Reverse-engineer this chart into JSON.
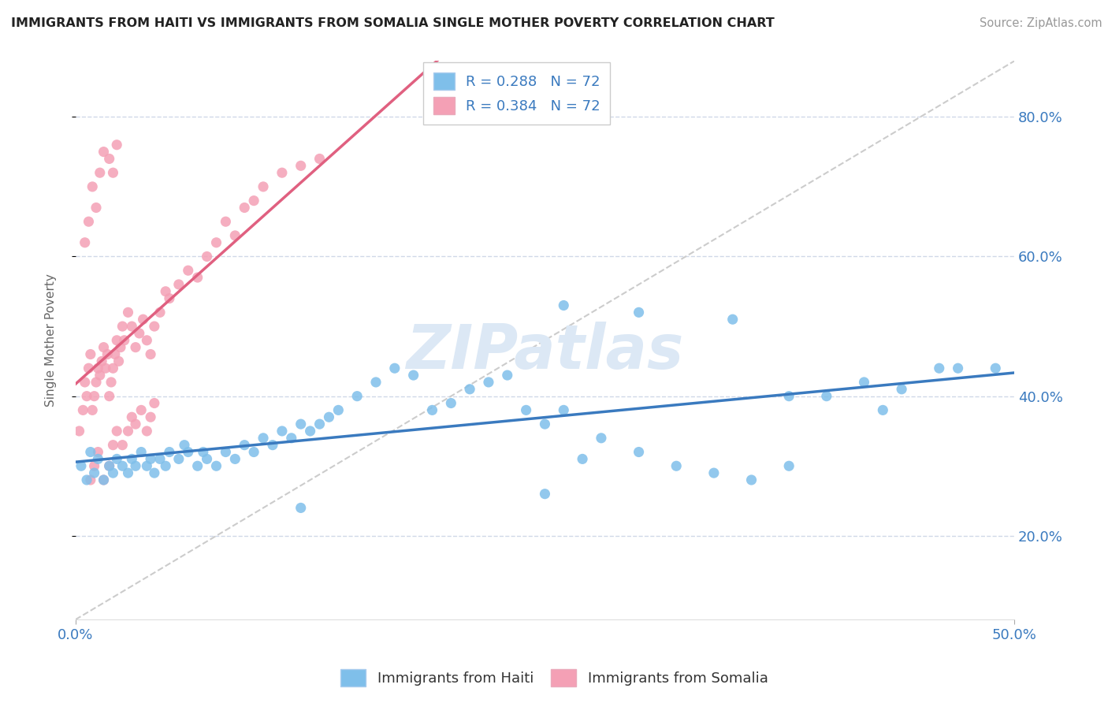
{
  "title": "IMMIGRANTS FROM HAITI VS IMMIGRANTS FROM SOMALIA SINGLE MOTHER POVERTY CORRELATION CHART",
  "source": "Source: ZipAtlas.com",
  "ylabel": "Single Mother Poverty",
  "xlim": [
    0.0,
    0.5
  ],
  "ylim": [
    0.08,
    0.88
  ],
  "haiti_R": "0.288",
  "haiti_N": "72",
  "somalia_R": "0.384",
  "somalia_N": "72",
  "haiti_color": "#7fbfea",
  "somalia_color": "#f4a0b5",
  "haiti_line_color": "#3a7abf",
  "somalia_line_color": "#e06080",
  "diag_line_color": "#cccccc",
  "watermark_color": "#dce8f5",
  "grid_color": "#d0d8e8",
  "haiti_x": [
    0.003,
    0.006,
    0.008,
    0.01,
    0.012,
    0.015,
    0.018,
    0.02,
    0.022,
    0.025,
    0.028,
    0.03,
    0.032,
    0.035,
    0.038,
    0.04,
    0.042,
    0.045,
    0.048,
    0.05,
    0.055,
    0.058,
    0.06,
    0.065,
    0.068,
    0.07,
    0.075,
    0.08,
    0.085,
    0.09,
    0.095,
    0.1,
    0.105,
    0.11,
    0.115,
    0.12,
    0.125,
    0.13,
    0.135,
    0.14,
    0.15,
    0.16,
    0.17,
    0.18,
    0.19,
    0.2,
    0.21,
    0.22,
    0.23,
    0.24,
    0.25,
    0.26,
    0.27,
    0.28,
    0.3,
    0.32,
    0.34,
    0.36,
    0.38,
    0.4,
    0.42,
    0.44,
    0.46,
    0.26,
    0.3,
    0.35,
    0.38,
    0.43,
    0.47,
    0.49,
    0.25,
    0.12
  ],
  "haiti_y": [
    0.3,
    0.28,
    0.32,
    0.29,
    0.31,
    0.28,
    0.3,
    0.29,
    0.31,
    0.3,
    0.29,
    0.31,
    0.3,
    0.32,
    0.3,
    0.31,
    0.29,
    0.31,
    0.3,
    0.32,
    0.31,
    0.33,
    0.32,
    0.3,
    0.32,
    0.31,
    0.3,
    0.32,
    0.31,
    0.33,
    0.32,
    0.34,
    0.33,
    0.35,
    0.34,
    0.36,
    0.35,
    0.36,
    0.37,
    0.38,
    0.4,
    0.42,
    0.44,
    0.43,
    0.38,
    0.39,
    0.41,
    0.42,
    0.43,
    0.38,
    0.36,
    0.38,
    0.31,
    0.34,
    0.32,
    0.3,
    0.29,
    0.28,
    0.3,
    0.4,
    0.42,
    0.41,
    0.44,
    0.53,
    0.52,
    0.51,
    0.4,
    0.38,
    0.44,
    0.44,
    0.26,
    0.24
  ],
  "somalia_x": [
    0.002,
    0.004,
    0.005,
    0.006,
    0.007,
    0.008,
    0.009,
    0.01,
    0.011,
    0.012,
    0.013,
    0.014,
    0.015,
    0.016,
    0.017,
    0.018,
    0.019,
    0.02,
    0.021,
    0.022,
    0.023,
    0.024,
    0.025,
    0.026,
    0.028,
    0.03,
    0.032,
    0.034,
    0.036,
    0.038,
    0.04,
    0.042,
    0.045,
    0.048,
    0.05,
    0.055,
    0.06,
    0.065,
    0.07,
    0.075,
    0.08,
    0.085,
    0.09,
    0.095,
    0.1,
    0.11,
    0.12,
    0.13,
    0.008,
    0.01,
    0.012,
    0.015,
    0.018,
    0.02,
    0.022,
    0.025,
    0.028,
    0.03,
    0.032,
    0.035,
    0.038,
    0.04,
    0.042,
    0.005,
    0.007,
    0.009,
    0.011,
    0.013,
    0.015,
    0.018,
    0.02,
    0.022
  ],
  "somalia_y": [
    0.35,
    0.38,
    0.42,
    0.4,
    0.44,
    0.46,
    0.38,
    0.4,
    0.42,
    0.44,
    0.43,
    0.45,
    0.47,
    0.44,
    0.46,
    0.4,
    0.42,
    0.44,
    0.46,
    0.48,
    0.45,
    0.47,
    0.5,
    0.48,
    0.52,
    0.5,
    0.47,
    0.49,
    0.51,
    0.48,
    0.46,
    0.5,
    0.52,
    0.55,
    0.54,
    0.56,
    0.58,
    0.57,
    0.6,
    0.62,
    0.65,
    0.63,
    0.67,
    0.68,
    0.7,
    0.72,
    0.73,
    0.74,
    0.28,
    0.3,
    0.32,
    0.28,
    0.3,
    0.33,
    0.35,
    0.33,
    0.35,
    0.37,
    0.36,
    0.38,
    0.35,
    0.37,
    0.39,
    0.62,
    0.65,
    0.7,
    0.67,
    0.72,
    0.75,
    0.74,
    0.72,
    0.76
  ]
}
